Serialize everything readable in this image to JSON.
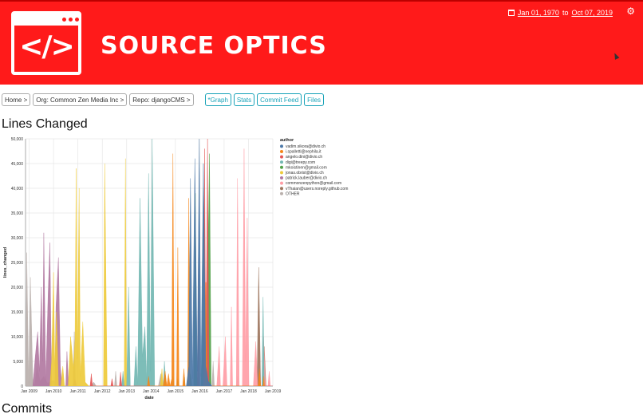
{
  "header": {
    "logo_code": "</>",
    "brand": "Source Optics",
    "date_from": "Jan 01, 1970",
    "date_to_label": "to",
    "date_to": "Oct 07, 2019"
  },
  "nav": {
    "home": "Home >",
    "org": "Org: Common Zen Media Inc >",
    "repo": "Repo: djangoCMS >",
    "tabs": [
      "*Graph",
      "Stats",
      "Commit Feed",
      "Files"
    ]
  },
  "sections": {
    "lines_changed": "Lines Changed",
    "commits": "Commits"
  },
  "chart_data": {
    "type": "area",
    "xlabel": "date",
    "ylabel": "lines_changed",
    "ylim": [
      0,
      50000
    ],
    "y_ticks": [
      "0",
      "5,000",
      "10,000",
      "15,000",
      "20,000",
      "25,000",
      "30,000",
      "35,000",
      "40,000",
      "45,000",
      "50,000"
    ],
    "x_ticks": [
      "Jan 2009",
      "Jan 2010",
      "Jan 2011",
      "Jan 2012",
      "Jan 2013",
      "Jan 2014",
      "Jan 2015",
      "Jan 2016",
      "Jan 2017",
      "Jan 2018",
      "Jan 2019"
    ],
    "x_range": [
      2008.85,
      2019.0
    ],
    "legend_title": "author",
    "legend_position": "right",
    "grid": true,
    "series": [
      {
        "name": "vadim.sikora@divio.ch",
        "color": "#4c78a8",
        "points": [
          [
            2015.45,
            0
          ],
          [
            2015.55,
            4000
          ],
          [
            2015.62,
            42000
          ],
          [
            2015.7,
            1500
          ],
          [
            2015.8,
            46000
          ],
          [
            2015.9,
            3000
          ],
          [
            2015.98,
            50000
          ],
          [
            2016.05,
            2000
          ],
          [
            2016.15,
            45000
          ],
          [
            2016.25,
            4000
          ],
          [
            2016.35,
            1000
          ],
          [
            2016.5,
            0
          ]
        ]
      },
      {
        "name": "i.spalletti@nephila.it",
        "color": "#f58518",
        "points": [
          [
            2013.85,
            0
          ],
          [
            2013.9,
            2000
          ],
          [
            2013.95,
            0
          ],
          [
            2014.5,
            0
          ],
          [
            2014.58,
            3000
          ],
          [
            2014.65,
            0
          ],
          [
            2014.72,
            2500
          ],
          [
            2014.78,
            0
          ],
          [
            2014.85,
            1500
          ],
          [
            2014.9,
            47000
          ],
          [
            2014.95,
            0
          ],
          [
            2015.05,
            0
          ],
          [
            2015.1,
            28000
          ],
          [
            2015.15,
            0
          ],
          [
            2015.3,
            0
          ],
          [
            2015.35,
            3500
          ],
          [
            2015.4,
            0
          ],
          [
            2015.5,
            0
          ],
          [
            2015.55,
            38000
          ],
          [
            2015.6,
            0
          ],
          [
            2016.2,
            0
          ],
          [
            2016.25,
            21000
          ],
          [
            2016.3,
            0
          ],
          [
            2018.4,
            0
          ],
          [
            2018.45,
            3500
          ],
          [
            2018.5,
            0
          ],
          [
            2018.6,
            0
          ],
          [
            2018.63,
            2000
          ],
          [
            2018.66,
            0
          ]
        ]
      },
      {
        "name": "angelo.dini@divio.ch",
        "color": "#e45756",
        "points": [
          [
            2011.5,
            0
          ],
          [
            2011.55,
            2500
          ],
          [
            2011.6,
            0
          ],
          [
            2012.35,
            0
          ],
          [
            2012.4,
            1500
          ],
          [
            2012.45,
            0
          ],
          [
            2012.7,
            0
          ],
          [
            2012.75,
            2800
          ],
          [
            2012.8,
            0
          ],
          [
            2015.9,
            0
          ],
          [
            2015.95,
            26000
          ],
          [
            2016.0,
            0
          ],
          [
            2016.15,
            0
          ],
          [
            2016.2,
            48000
          ],
          [
            2016.25,
            3000
          ],
          [
            2016.32,
            50000
          ],
          [
            2016.38,
            0
          ],
          [
            2019.0,
            0
          ],
          [
            2019.12,
            1800
          ],
          [
            2019.25,
            1500
          ]
        ]
      },
      {
        "name": "digi@treepy.com",
        "color": "#72b7b2",
        "points": [
          [
            2012.8,
            0
          ],
          [
            2012.85,
            3000
          ],
          [
            2012.9,
            0
          ],
          [
            2013.0,
            0
          ],
          [
            2013.08,
            20000
          ],
          [
            2013.15,
            0
          ],
          [
            2013.3,
            0
          ],
          [
            2013.38,
            8000
          ],
          [
            2013.45,
            500
          ],
          [
            2013.55,
            38000
          ],
          [
            2013.65,
            6000
          ],
          [
            2013.75,
            12000
          ],
          [
            2013.82,
            1000
          ],
          [
            2013.9,
            43000
          ],
          [
            2013.98,
            3000
          ],
          [
            2014.05,
            50000
          ],
          [
            2014.15,
            0
          ],
          [
            2014.5,
            0
          ],
          [
            2014.55,
            5000
          ],
          [
            2014.62,
            0
          ],
          [
            2014.85,
            0
          ],
          [
            2014.9,
            2000
          ],
          [
            2014.95,
            0
          ],
          [
            2015.35,
            0
          ],
          [
            2015.38,
            1800
          ],
          [
            2015.4,
            0
          ],
          [
            2018.55,
            0
          ],
          [
            2018.6,
            18000
          ],
          [
            2018.65,
            0
          ]
        ]
      },
      {
        "name": "mkoistinen@gmail.com",
        "color": "#54a24b",
        "points": [
          [
            2015.05,
            0
          ],
          [
            2015.1,
            1500
          ],
          [
            2015.15,
            0
          ],
          [
            2015.55,
            0
          ],
          [
            2015.62,
            2500
          ],
          [
            2015.68,
            0
          ],
          [
            2015.75,
            0
          ],
          [
            2015.82,
            39000
          ],
          [
            2015.88,
            2000
          ],
          [
            2015.95,
            0
          ],
          [
            2016.05,
            0
          ],
          [
            2016.1,
            6000
          ],
          [
            2016.15,
            40000
          ],
          [
            2016.22,
            3000
          ],
          [
            2016.3,
            12000
          ],
          [
            2016.4,
            47000
          ],
          [
            2016.47,
            0
          ]
        ]
      },
      {
        "name": "jonas.obrist@divio.ch",
        "color": "#eeca3b",
        "points": [
          [
            2009.85,
            0
          ],
          [
            2009.92,
            5000
          ],
          [
            2010.0,
            23000
          ],
          [
            2010.05,
            4000
          ],
          [
            2010.12,
            15000
          ],
          [
            2010.2,
            0
          ],
          [
            2010.3,
            0
          ],
          [
            2010.38,
            4000
          ],
          [
            2010.45,
            0
          ],
          [
            2010.6,
            0
          ],
          [
            2010.7,
            10000
          ],
          [
            2010.82,
            3500
          ],
          [
            2010.88,
            9500
          ],
          [
            2010.93,
            44000
          ],
          [
            2010.98,
            5500
          ],
          [
            2011.05,
            40000
          ],
          [
            2011.1,
            2000
          ],
          [
            2011.2,
            13000
          ],
          [
            2011.3,
            800
          ],
          [
            2011.45,
            0
          ],
          [
            2012.05,
            0
          ],
          [
            2012.1,
            45000
          ],
          [
            2012.2,
            0
          ],
          [
            2012.9,
            0
          ],
          [
            2012.95,
            46000
          ],
          [
            2013.0,
            0
          ],
          [
            2014.38,
            0
          ],
          [
            2014.45,
            3500
          ],
          [
            2014.5,
            0
          ]
        ]
      },
      {
        "name": "patrick.lauber@divio.ch",
        "color": "#b279a2",
        "points": [
          [
            2009.15,
            0
          ],
          [
            2009.25,
            6000
          ],
          [
            2009.35,
            11000
          ],
          [
            2009.42,
            3000
          ],
          [
            2009.5,
            20000
          ],
          [
            2009.55,
            5000
          ],
          [
            2009.6,
            31000
          ],
          [
            2009.68,
            1000
          ],
          [
            2009.78,
            19000
          ],
          [
            2009.85,
            29000
          ],
          [
            2009.92,
            0
          ],
          [
            2010.05,
            0
          ],
          [
            2010.1,
            16000
          ],
          [
            2010.2,
            26000
          ],
          [
            2010.28,
            4000
          ],
          [
            2010.35,
            0
          ],
          [
            2010.5,
            0
          ],
          [
            2010.55,
            7000
          ],
          [
            2010.62,
            0
          ],
          [
            2010.8,
            0
          ],
          [
            2010.88,
            1500
          ],
          [
            2010.95,
            0
          ]
        ]
      },
      {
        "name": "commonzenpython@gmail.com",
        "color": "#ff9da6",
        "points": [
          [
            2016.7,
            0
          ],
          [
            2016.8,
            8000
          ],
          [
            2016.85,
            0
          ],
          [
            2016.95,
            0
          ],
          [
            2017.05,
            10000
          ],
          [
            2017.12,
            0
          ],
          [
            2017.25,
            0
          ],
          [
            2017.3,
            16000
          ],
          [
            2017.35,
            0
          ],
          [
            2017.5,
            0
          ],
          [
            2017.55,
            42000
          ],
          [
            2017.62,
            0
          ],
          [
            2017.75,
            0
          ],
          [
            2017.82,
            48000
          ],
          [
            2017.88,
            5000
          ],
          [
            2017.95,
            34000
          ],
          [
            2018.02,
            0
          ],
          [
            2018.2,
            0
          ],
          [
            2018.3,
            9000
          ],
          [
            2018.38,
            0
          ],
          [
            2018.55,
            0
          ],
          [
            2018.62,
            10000
          ],
          [
            2018.7,
            0
          ],
          [
            2018.8,
            0
          ],
          [
            2018.85,
            3000
          ],
          [
            2018.9,
            0
          ]
        ]
      },
      {
        "name": "vThaian@users.noreply.github.com",
        "color": "#9d755d",
        "points": [
          [
            2018.35,
            0
          ],
          [
            2018.42,
            24000
          ],
          [
            2018.5,
            0
          ],
          [
            2018.6,
            0
          ],
          [
            2018.65,
            8000
          ],
          [
            2018.72,
            0
          ]
        ]
      },
      {
        "name": "OTHER",
        "color": "#bab0ac",
        "points": [
          [
            2008.85,
            0
          ],
          [
            2008.9,
            27000
          ],
          [
            2008.98,
            500
          ],
          [
            2009.05,
            22000
          ],
          [
            2009.15,
            1500
          ],
          [
            2009.22,
            0
          ],
          [
            2009.32,
            4000
          ],
          [
            2009.45,
            1000
          ],
          [
            2009.6,
            2000
          ],
          [
            2009.75,
            600
          ],
          [
            2010.0,
            1200
          ],
          [
            2010.2,
            0
          ],
          [
            2010.8,
            0
          ],
          [
            2010.85,
            11000
          ],
          [
            2010.9,
            0
          ],
          [
            2011.55,
            0
          ],
          [
            2011.65,
            800
          ],
          [
            2011.75,
            0
          ],
          [
            2012.5,
            0
          ],
          [
            2012.55,
            3000
          ],
          [
            2012.6,
            0
          ],
          [
            2014.3,
            0
          ],
          [
            2014.4,
            2500
          ],
          [
            2014.45,
            0
          ],
          [
            2016.5,
            0
          ],
          [
            2016.55,
            5000
          ],
          [
            2016.6,
            0
          ],
          [
            2017.5,
            0
          ],
          [
            2017.55,
            2000
          ],
          [
            2017.6,
            0
          ],
          [
            2018.55,
            0
          ],
          [
            2018.6,
            6000
          ],
          [
            2018.65,
            0
          ]
        ]
      }
    ]
  }
}
